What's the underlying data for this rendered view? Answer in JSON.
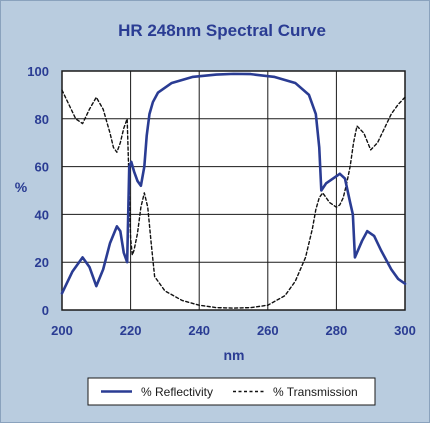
{
  "chart_data": {
    "type": "line",
    "title": "HR 248nm Spectral Curve",
    "xlabel": "nm",
    "ylabel": "%",
    "xlim": [
      200,
      300
    ],
    "ylim": [
      0,
      100
    ],
    "xticks": [
      200,
      220,
      240,
      260,
      280,
      300
    ],
    "yticks": [
      0,
      20,
      40,
      60,
      80,
      100
    ],
    "grid": true,
    "legend_position": "bottom",
    "colors": {
      "background": "#b9ccdf",
      "plot_background": "#ffffff",
      "text": "#2a3c93",
      "reflectivity": "#2a3c93",
      "transmission": "#111111"
    },
    "series": [
      {
        "name": "% Reflectivity",
        "style": "solid",
        "x": [
          200,
          203,
          206,
          208,
          210,
          212,
          214,
          216,
          217,
          218,
          219,
          219.6,
          220.2,
          221,
          222,
          223,
          224,
          224.7,
          225.5,
          226.5,
          228,
          232,
          238,
          245,
          250,
          255,
          262,
          268,
          272,
          274,
          275,
          275.6,
          277,
          279,
          281,
          282.5,
          284,
          284.8,
          285.4,
          286,
          287.5,
          289,
          291,
          293,
          296,
          298,
          300
        ],
        "y": [
          7,
          16,
          22,
          18,
          10,
          17,
          28,
          35,
          33,
          24,
          20,
          60,
          62,
          58,
          54,
          52,
          60,
          73,
          82,
          87,
          91,
          95,
          97.5,
          98.5,
          98.8,
          98.7,
          97.5,
          95,
          90,
          82,
          68,
          50,
          53,
          55,
          57,
          55,
          45,
          40,
          22,
          24,
          29,
          33,
          31,
          25,
          17,
          13,
          11
        ]
      },
      {
        "name": "% Transmission",
        "style": "dashed",
        "x": [
          200,
          202,
          204,
          206,
          208,
          210,
          212,
          214,
          215,
          216,
          217,
          218,
          219,
          219.5,
          220,
          220.5,
          221,
          222,
          223,
          224,
          225,
          226,
          227,
          230,
          235,
          240,
          245,
          250,
          255,
          260,
          265,
          268,
          271,
          273,
          274,
          275,
          276,
          277,
          278,
          279,
          280,
          281,
          282,
          283,
          284,
          285,
          286,
          288,
          290,
          292,
          294,
          296,
          298,
          300
        ],
        "y": [
          92,
          86,
          80,
          78,
          84,
          89,
          84,
          74,
          68,
          66,
          70,
          76,
          80,
          56,
          30,
          23,
          25,
          32,
          43,
          49,
          43,
          28,
          14,
          8,
          4,
          2,
          1,
          0.8,
          1,
          2,
          6,
          12,
          22,
          34,
          42,
          47,
          49,
          47,
          45,
          44,
          43,
          44,
          47,
          53,
          60,
          70,
          77,
          74,
          67,
          70,
          76,
          82,
          86,
          89
        ]
      }
    ]
  }
}
